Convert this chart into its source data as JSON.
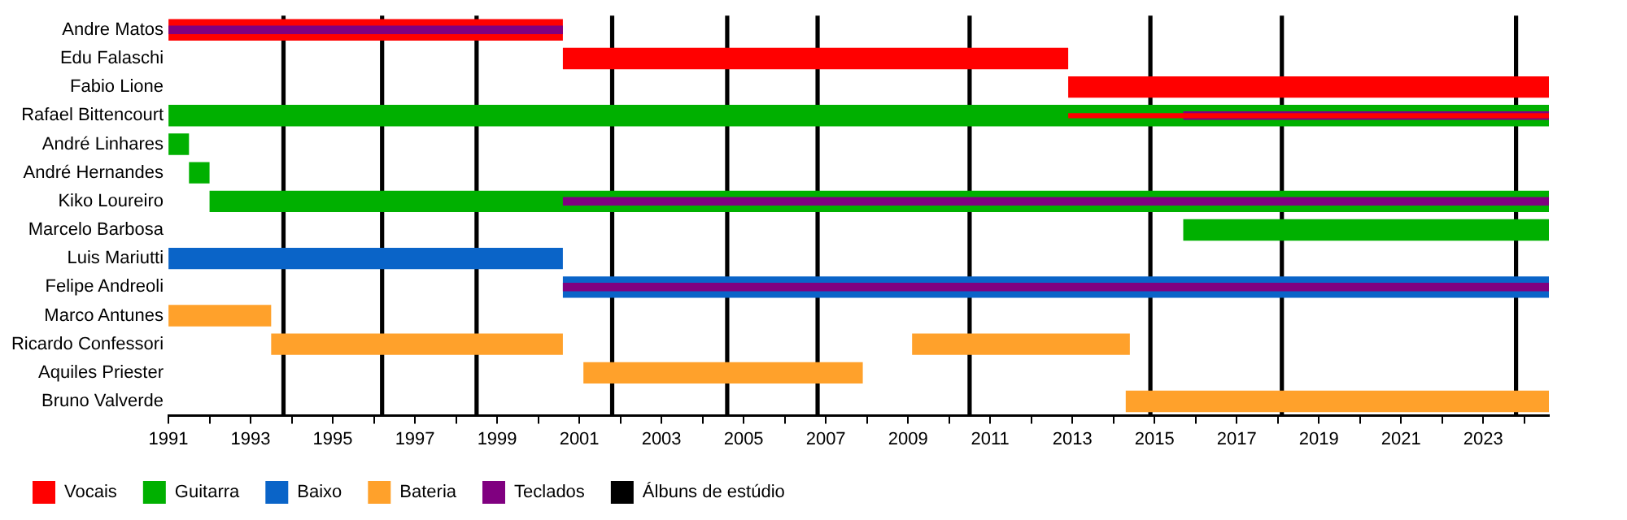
{
  "chart_data": {
    "type": "bar",
    "orientation": "horizontal",
    "grid": false,
    "legend": "bottom",
    "categories": [
      "Andre Matos",
      "Edu Falaschi",
      "Fabio Lione",
      "Rafael Bittencourt",
      "André Linhares",
      "André Hernandes",
      "Kiko Loureiro",
      "Marcelo Barbosa",
      "Luis Mariutti",
      "Felipe Andreoli",
      "Marco Antunes",
      "Ricardo Confessori",
      "Aquiles Priester",
      "Bruno Valverde"
    ],
    "series": [
      {
        "name": "Vocais",
        "color": "#ff0000",
        "base": [
          1991,
          2000.6,
          2012.9,
          null,
          null,
          null,
          null,
          null,
          null,
          null,
          null,
          null,
          null,
          null
        ],
        "values": [
          9.6,
          12.3,
          11.7,
          null,
          null,
          null,
          null,
          null,
          null,
          null,
          null,
          null,
          null,
          null
        ]
      },
      {
        "name": "Guitarra",
        "color": "#00b000",
        "base": [
          null,
          null,
          null,
          1991,
          1991,
          1991.5,
          1992.0,
          2015.7,
          null,
          null,
          null,
          null,
          null,
          null
        ],
        "values": [
          null,
          null,
          null,
          33.6,
          0.5,
          0.5,
          32.6,
          8.9,
          null,
          null,
          null,
          null,
          null,
          null
        ]
      },
      {
        "name": "Baixo",
        "color": "#0a64c8",
        "base": [
          null,
          null,
          null,
          null,
          null,
          null,
          null,
          null,
          1991,
          2000.6,
          null,
          null,
          null,
          null
        ],
        "values": [
          null,
          null,
          null,
          null,
          null,
          null,
          null,
          null,
          9.6,
          24.0,
          null,
          null,
          null,
          null
        ]
      },
      {
        "name": "Bateria",
        "color": "#ffa12b",
        "base": [
          null,
          null,
          null,
          null,
          null,
          null,
          null,
          null,
          null,
          null,
          1991,
          1993.5,
          2001.1,
          2014.3
        ],
        "values": [
          null,
          null,
          null,
          null,
          null,
          null,
          null,
          null,
          null,
          null,
          2.5,
          7.1,
          6.8,
          10.3
        ]
      },
      {
        "color": "#ffa12b",
        "base": [
          null,
          null,
          null,
          null,
          null,
          null,
          null,
          null,
          null,
          null,
          null,
          2009.1,
          null,
          null
        ],
        "values": [
          null,
          null,
          null,
          null,
          null,
          null,
          null,
          null,
          null,
          null,
          null,
          5.3,
          null,
          null
        ]
      },
      {
        "name": "Teclados",
        "color": "#800080",
        "base": [
          1991,
          null,
          null,
          2015.7,
          null,
          null,
          2000.6,
          null,
          null,
          2000.6,
          null,
          null,
          null,
          null
        ],
        "values": [
          9.6,
          null,
          null,
          8.9,
          null,
          null,
          24.0,
          null,
          null,
          24.0,
          null,
          null,
          null,
          null
        ]
      },
      {
        "color": "#ff0000",
        "base": [
          null,
          null,
          null,
          2012.9,
          null,
          null,
          null,
          null,
          null,
          null,
          null,
          null,
          null,
          null
        ],
        "values": [
          null,
          null,
          null,
          11.7,
          null,
          null,
          null,
          null,
          null,
          null,
          null,
          null,
          null,
          null
        ]
      }
    ],
    "xlim": [
      1991,
      2024.6
    ],
    "xticks": [
      1991,
      {
        "value": 1992,
        "label": null
      },
      1993,
      {
        "value": 1994,
        "label": null
      },
      1995,
      {
        "value": 1996,
        "label": null
      },
      1997,
      {
        "value": 1998,
        "label": null
      },
      1999,
      {
        "value": 2000,
        "label": null
      },
      2001,
      {
        "value": 2002,
        "label": null
      },
      2003,
      {
        "value": 2004,
        "label": null
      },
      2005,
      {
        "value": 2006,
        "label": null
      },
      2007,
      {
        "value": 2008,
        "label": null
      },
      2009,
      {
        "value": 2010,
        "label": null
      },
      2011,
      {
        "value": 2012,
        "label": null
      },
      2013,
      {
        "value": 2014,
        "label": null
      },
      2015,
      {
        "value": 2016,
        "label": null
      },
      2017,
      {
        "value": 2018,
        "label": null
      },
      2019,
      {
        "value": 2020,
        "label": null
      },
      2021,
      {
        "value": 2022,
        "label": null
      },
      2023,
      {
        "value": 2024,
        "label": null
      }
    ],
    "ref_lines": [
      {
        "axis": "x",
        "value": 1993.8,
        "label": "Álbuns de estúdio",
        "color": "#000000"
      },
      {
        "axis": "x",
        "value": 1996.2,
        "color": "#000000"
      },
      {
        "axis": "x",
        "value": 1998.5,
        "color": "#000000"
      },
      {
        "axis": "x",
        "value": 2001.8,
        "color": "#000000"
      },
      {
        "axis": "x",
        "value": 2004.6,
        "color": "#000000"
      },
      {
        "axis": "x",
        "value": 2006.8,
        "color": "#000000"
      },
      {
        "axis": "x",
        "value": 2010.5,
        "color": "#000000"
      },
      {
        "axis": "x",
        "value": 2014.9,
        "color": "#000000"
      },
      {
        "axis": "x",
        "value": 2018.1,
        "color": "#000000"
      },
      {
        "axis": "x",
        "value": 2023.8,
        "color": "#000000"
      }
    ]
  }
}
